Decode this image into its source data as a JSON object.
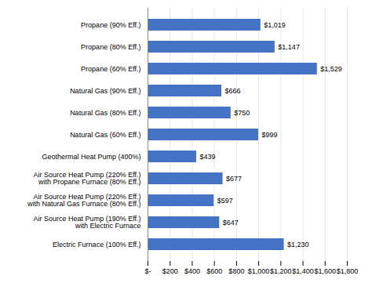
{
  "chart_data": {
    "type": "bar",
    "orientation": "horizontal",
    "categories": [
      "Electric Furnace (100% Eff.)",
      "Air Source Heat Pump (190% Eff.)\nwith Electric Furnace",
      "Air Source Heat Pump (220% Eff.)\nwith Natural Gas Furnace (80% Eff.)",
      "Air Source Heat Pump (220% Eff.)\nwith Propane Furnace (80% Eff.)",
      "Geothermal Heat Pump (400%)",
      "Natural Gas (60% Eff.)",
      "Natural Gas (80% Eff.)",
      "Natural Gas (90% Eff.)",
      "Propane (60% Eff.)",
      "Propane (80% Eff.)",
      "Propane (90% Eff.)"
    ],
    "values": [
      1230,
      647,
      597,
      677,
      439,
      999,
      750,
      666,
      1529,
      1147,
      1019
    ],
    "value_labels": [
      "$1,230",
      "$647",
      "$597",
      "$677",
      "$439",
      "$999",
      "$750",
      "$666",
      "$1,529",
      "$1,147",
      "$1,019"
    ],
    "data_labels": true,
    "color": "#4472C4",
    "xlim": [
      0,
      1800
    ],
    "xticks": [
      {
        "value": 0,
        "label": "$-"
      },
      {
        "value": 200,
        "label": "$200"
      },
      {
        "value": 400,
        "label": "$400"
      },
      {
        "value": 600,
        "label": "$600"
      },
      {
        "value": 800,
        "label": "$800"
      },
      {
        "value": 1000,
        "label": "$1,000"
      },
      {
        "value": 1200,
        "label": "$1,200"
      },
      {
        "value": 1400,
        "label": "$1,400"
      },
      {
        "value": 1600,
        "label": "$1,600"
      },
      {
        "value": 1800,
        "label": "$1,800"
      }
    ],
    "grid": true
  }
}
